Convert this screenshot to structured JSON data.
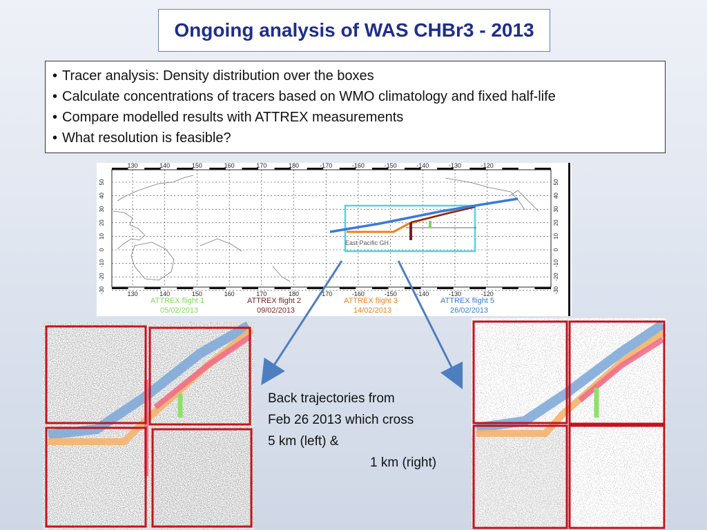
{
  "slide": {
    "title": "Ongoing analysis of WAS CHBr3 - 2013",
    "bullets": [
      "Tracer analysis: Density distribution over the boxes",
      "Calculate concentrations of tracers based on WMO climatology and fixed half-life",
      "Compare modelled results with ATTREX measurements",
      "What resolution is feasible?"
    ],
    "bullet_char": "•"
  },
  "map": {
    "lon_ticks": [
      "130",
      "140",
      "150",
      "160",
      "170",
      "180",
      "-170",
      "-160",
      "-150",
      "-140",
      "-130",
      "-120"
    ],
    "lat_ticks": [
      "50",
      "40",
      "30",
      "20",
      "10",
      "0",
      "-10",
      "-20",
      "-30"
    ],
    "region_label": "East Pacific GH",
    "legend": [
      {
        "label": "ATTREX flight 1",
        "date": "05/02/2013",
        "color": "#7ed957"
      },
      {
        "label": "ATTREX flight 2",
        "date": "09/02/2013",
        "color": "#7a1f1f"
      },
      {
        "label": "ATTREX flight 3",
        "date": "14/02/2013",
        "color": "#f07f1a"
      },
      {
        "label": "ATTREX flight 5",
        "date": "26/02/2013",
        "color": "#3a7ad8"
      }
    ],
    "box_color": "#4fd3e6"
  },
  "caption": {
    "line1": "Back trajectories from",
    "line2": "Feb 26 2013 which cross",
    "line3": "5 km (left) &",
    "line4": "1 km (right)"
  },
  "colors": {
    "title": "#1d2e8c",
    "frame_red": "#c0141c",
    "arrow": "#4d7fc0",
    "traj_blue": "#7aa7d8",
    "traj_orange": "#f5b26b",
    "traj_pink": "#f06a8a",
    "traj_green": "#8fe06a"
  }
}
